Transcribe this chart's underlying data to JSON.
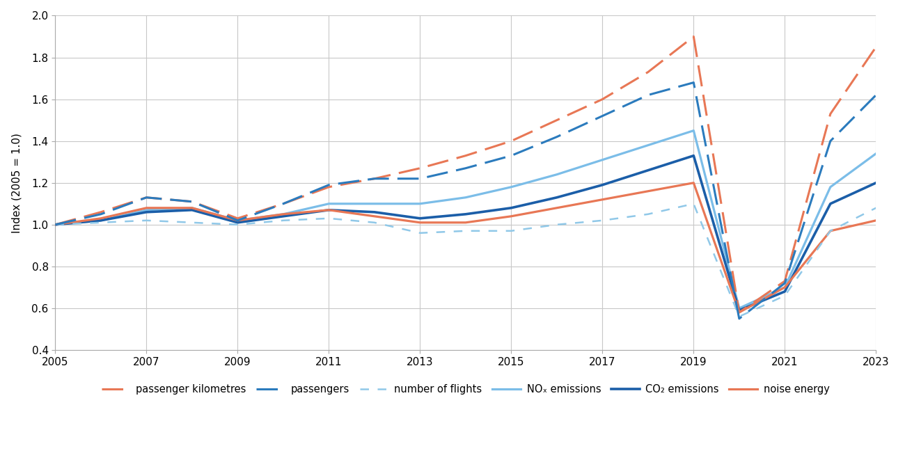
{
  "years": [
    2005,
    2006,
    2007,
    2008,
    2009,
    2010,
    2011,
    2012,
    2013,
    2014,
    2015,
    2016,
    2017,
    2018,
    2019,
    2020,
    2021,
    2022,
    2023
  ],
  "passenger_km": [
    1.0,
    1.06,
    1.13,
    1.11,
    1.03,
    1.1,
    1.18,
    1.22,
    1.27,
    1.33,
    1.4,
    1.5,
    1.6,
    1.73,
    1.9,
    0.58,
    0.73,
    1.53,
    1.85
  ],
  "passengers": [
    1.0,
    1.05,
    1.13,
    1.11,
    1.02,
    1.1,
    1.19,
    1.22,
    1.22,
    1.27,
    1.33,
    1.42,
    1.52,
    1.62,
    1.68,
    0.55,
    0.72,
    1.4,
    1.62
  ],
  "num_flights": [
    1.0,
    1.01,
    1.02,
    1.01,
    1.0,
    1.02,
    1.03,
    1.01,
    0.96,
    0.97,
    0.97,
    1.0,
    1.02,
    1.05,
    1.1,
    0.56,
    0.66,
    0.97,
    1.08
  ],
  "nox_emissions": [
    1.0,
    1.02,
    1.07,
    1.08,
    1.02,
    1.05,
    1.1,
    1.1,
    1.1,
    1.13,
    1.18,
    1.24,
    1.31,
    1.38,
    1.45,
    0.6,
    0.7,
    1.18,
    1.34
  ],
  "co2_emissions": [
    1.0,
    1.02,
    1.06,
    1.07,
    1.01,
    1.04,
    1.07,
    1.06,
    1.03,
    1.05,
    1.08,
    1.13,
    1.19,
    1.26,
    1.33,
    0.59,
    0.68,
    1.1,
    1.2
  ],
  "noise_energy": [
    1.0,
    1.03,
    1.08,
    1.08,
    1.02,
    1.05,
    1.07,
    1.04,
    1.01,
    1.01,
    1.04,
    1.08,
    1.12,
    1.16,
    1.2,
    0.58,
    0.7,
    0.97,
    1.02
  ],
  "color_orange_dashed": "#E87755",
  "color_blue_dashed": "#2B7BBD",
  "color_light_blue_dashed": "#90C8E8",
  "color_light_blue_solid": "#7BBDE8",
  "color_dark_blue_solid": "#1B5EA8",
  "color_orange_solid": "#E87755",
  "ylim": [
    0.4,
    2.0
  ],
  "ylabel": "Index (2005 = 1.0)",
  "xticks": [
    2005,
    2007,
    2009,
    2011,
    2013,
    2015,
    2017,
    2019,
    2021,
    2023
  ],
  "yticks": [
    0.4,
    0.6,
    0.8,
    1.0,
    1.2,
    1.4,
    1.6,
    1.8,
    2.0
  ]
}
